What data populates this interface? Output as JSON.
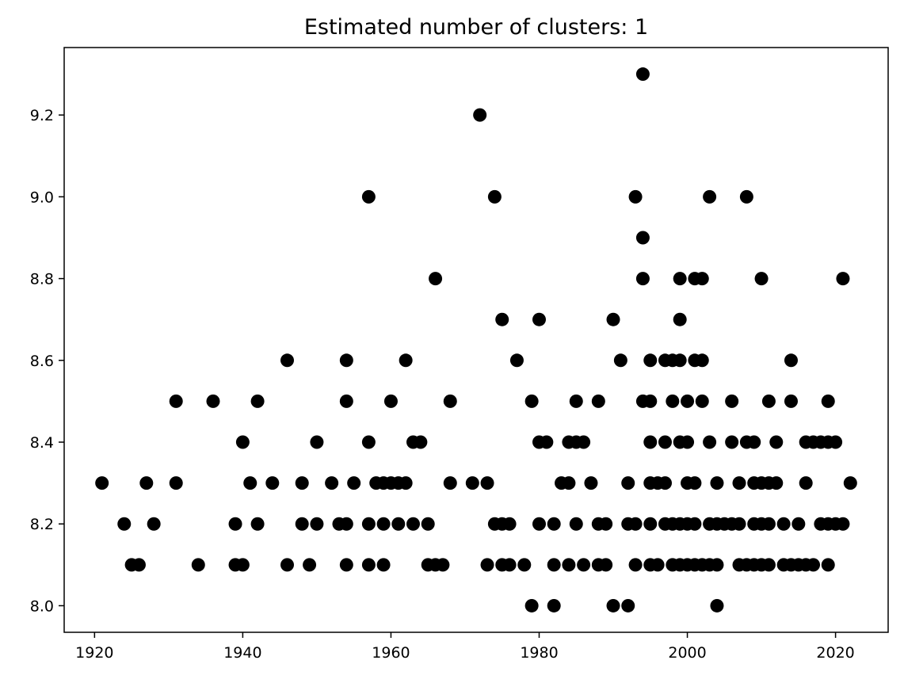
{
  "chart_data": {
    "type": "scatter",
    "title": "Estimated number of clusters: 1",
    "xlabel": "",
    "ylabel": "",
    "xlim": [
      1915.9,
      2027.1
    ],
    "ylim": [
      7.935,
      9.365
    ],
    "xticks": [
      1920,
      1940,
      1960,
      1980,
      2000,
      2020
    ],
    "yticks": [
      8.0,
      8.2,
      8.4,
      8.6,
      8.8,
      9.0,
      9.2
    ],
    "grid": false,
    "point_color": "#000000",
    "series": [
      {
        "points": [
          [
            1921,
            8.3
          ],
          [
            1924,
            8.2
          ],
          [
            1925,
            8.1
          ],
          [
            1926,
            8.1
          ],
          [
            1927,
            8.3
          ],
          [
            1928,
            8.2
          ],
          [
            1931,
            8.5
          ],
          [
            1931,
            8.3
          ],
          [
            1934,
            8.1
          ],
          [
            1936,
            8.5
          ],
          [
            1939,
            8.2
          ],
          [
            1939,
            8.1
          ],
          [
            1940,
            8.4
          ],
          [
            1940,
            8.1
          ],
          [
            1941,
            8.3
          ],
          [
            1942,
            8.5
          ],
          [
            1942,
            8.2
          ],
          [
            1944,
            8.3
          ],
          [
            1946,
            8.6
          ],
          [
            1946,
            8.1
          ],
          [
            1948,
            8.3
          ],
          [
            1948,
            8.2
          ],
          [
            1949,
            8.1
          ],
          [
            1950,
            8.4
          ],
          [
            1950,
            8.2
          ],
          [
            1952,
            8.3
          ],
          [
            1953,
            8.2
          ],
          [
            1954,
            8.6
          ],
          [
            1954,
            8.5
          ],
          [
            1954,
            8.2
          ],
          [
            1954,
            8.1
          ],
          [
            1955,
            8.3
          ],
          [
            1957,
            9.0
          ],
          [
            1957,
            8.4
          ],
          [
            1957,
            8.2
          ],
          [
            1957,
            8.1
          ],
          [
            1958,
            8.3
          ],
          [
            1959,
            8.3
          ],
          [
            1959,
            8.2
          ],
          [
            1959,
            8.1
          ],
          [
            1960,
            8.5
          ],
          [
            1960,
            8.3
          ],
          [
            1961,
            8.3
          ],
          [
            1961,
            8.2
          ],
          [
            1962,
            8.6
          ],
          [
            1962,
            8.3
          ],
          [
            1963,
            8.4
          ],
          [
            1963,
            8.2
          ],
          [
            1964,
            8.4
          ],
          [
            1965,
            8.2
          ],
          [
            1965,
            8.1
          ],
          [
            1966,
            8.8
          ],
          [
            1966,
            8.1
          ],
          [
            1967,
            8.1
          ],
          [
            1968,
            8.5
          ],
          [
            1968,
            8.3
          ],
          [
            1971,
            8.3
          ],
          [
            1972,
            9.2
          ],
          [
            1973,
            8.3
          ],
          [
            1973,
            8.1
          ],
          [
            1974,
            9.0
          ],
          [
            1974,
            8.2
          ],
          [
            1975,
            8.7
          ],
          [
            1975,
            8.2
          ],
          [
            1975,
            8.1
          ],
          [
            1976,
            8.2
          ],
          [
            1976,
            8.1
          ],
          [
            1977,
            8.6
          ],
          [
            1978,
            8.1
          ],
          [
            1979,
            8.5
          ],
          [
            1979,
            8.0
          ],
          [
            1980,
            8.7
          ],
          [
            1980,
            8.4
          ],
          [
            1980,
            8.2
          ],
          [
            1981,
            8.4
          ],
          [
            1982,
            8.2
          ],
          [
            1982,
            8.1
          ],
          [
            1982,
            8.0
          ],
          [
            1983,
            8.3
          ],
          [
            1984,
            8.4
          ],
          [
            1984,
            8.3
          ],
          [
            1984,
            8.1
          ],
          [
            1985,
            8.5
          ],
          [
            1985,
            8.4
          ],
          [
            1985,
            8.2
          ],
          [
            1986,
            8.4
          ],
          [
            1986,
            8.1
          ],
          [
            1987,
            8.3
          ],
          [
            1988,
            8.5
          ],
          [
            1988,
            8.2
          ],
          [
            1988,
            8.1
          ],
          [
            1989,
            8.2
          ],
          [
            1989,
            8.1
          ],
          [
            1990,
            8.7
          ],
          [
            1990,
            8.0
          ],
          [
            1991,
            8.6
          ],
          [
            1992,
            8.3
          ],
          [
            1992,
            8.2
          ],
          [
            1992,
            8.0
          ],
          [
            1993,
            9.0
          ],
          [
            1993,
            8.2
          ],
          [
            1993,
            8.1
          ],
          [
            1994,
            9.3
          ],
          [
            1994,
            8.9
          ],
          [
            1994,
            8.8
          ],
          [
            1994,
            8.5
          ],
          [
            1995,
            8.6
          ],
          [
            1995,
            8.5
          ],
          [
            1995,
            8.4
          ],
          [
            1995,
            8.3
          ],
          [
            1995,
            8.2
          ],
          [
            1995,
            8.1
          ],
          [
            1996,
            8.3
          ],
          [
            1996,
            8.1
          ],
          [
            1997,
            8.6
          ],
          [
            1997,
            8.4
          ],
          [
            1997,
            8.3
          ],
          [
            1997,
            8.2
          ],
          [
            1998,
            8.6
          ],
          [
            1998,
            8.5
          ],
          [
            1998,
            8.2
          ],
          [
            1998,
            8.1
          ],
          [
            1999,
            8.8
          ],
          [
            1999,
            8.7
          ],
          [
            1999,
            8.6
          ],
          [
            1999,
            8.4
          ],
          [
            1999,
            8.2
          ],
          [
            1999,
            8.1
          ],
          [
            2000,
            8.5
          ],
          [
            2000,
            8.4
          ],
          [
            2000,
            8.3
          ],
          [
            2000,
            8.2
          ],
          [
            2000,
            8.1
          ],
          [
            2001,
            8.8
          ],
          [
            2001,
            8.6
          ],
          [
            2001,
            8.3
          ],
          [
            2001,
            8.2
          ],
          [
            2001,
            8.1
          ],
          [
            2002,
            8.8
          ],
          [
            2002,
            8.6
          ],
          [
            2002,
            8.5
          ],
          [
            2002,
            8.1
          ],
          [
            2003,
            9.0
          ],
          [
            2003,
            8.4
          ],
          [
            2003,
            8.2
          ],
          [
            2003,
            8.1
          ],
          [
            2004,
            8.3
          ],
          [
            2004,
            8.2
          ],
          [
            2004,
            8.1
          ],
          [
            2004,
            8.0
          ],
          [
            2005,
            8.2
          ],
          [
            2006,
            8.5
          ],
          [
            2006,
            8.4
          ],
          [
            2006,
            8.2
          ],
          [
            2007,
            8.3
          ],
          [
            2007,
            8.2
          ],
          [
            2007,
            8.1
          ],
          [
            2008,
            9.0
          ],
          [
            2008,
            8.4
          ],
          [
            2008,
            8.1
          ],
          [
            2009,
            8.4
          ],
          [
            2009,
            8.3
          ],
          [
            2009,
            8.2
          ],
          [
            2009,
            8.1
          ],
          [
            2010,
            8.8
          ],
          [
            2010,
            8.3
          ],
          [
            2010,
            8.2
          ],
          [
            2010,
            8.1
          ],
          [
            2011,
            8.5
          ],
          [
            2011,
            8.3
          ],
          [
            2011,
            8.2
          ],
          [
            2011,
            8.1
          ],
          [
            2012,
            8.4
          ],
          [
            2012,
            8.3
          ],
          [
            2013,
            8.2
          ],
          [
            2013,
            8.1
          ],
          [
            2014,
            8.6
          ],
          [
            2014,
            8.5
          ],
          [
            2014,
            8.1
          ],
          [
            2015,
            8.2
          ],
          [
            2015,
            8.1
          ],
          [
            2016,
            8.4
          ],
          [
            2016,
            8.3
          ],
          [
            2016,
            8.1
          ],
          [
            2017,
            8.4
          ],
          [
            2017,
            8.1
          ],
          [
            2018,
            8.4
          ],
          [
            2018,
            8.2
          ],
          [
            2019,
            8.5
          ],
          [
            2019,
            8.4
          ],
          [
            2019,
            8.2
          ],
          [
            2019,
            8.1
          ],
          [
            2020,
            8.4
          ],
          [
            2020,
            8.2
          ],
          [
            2021,
            8.8
          ],
          [
            2021,
            8.2
          ],
          [
            2022,
            8.3
          ]
        ]
      }
    ]
  }
}
